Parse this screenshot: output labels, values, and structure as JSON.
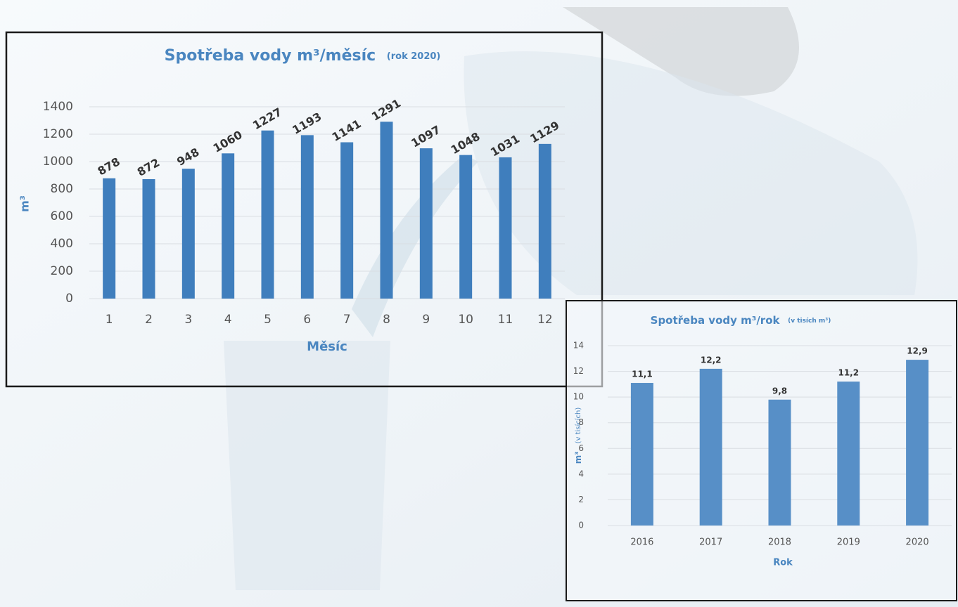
{
  "chart_data": [
    {
      "type": "bar",
      "title": "Spotřeba vody m³/měsíc",
      "subtitle": "(rok 2020)",
      "x_label": "Měsíc",
      "y_label": "m³",
      "categories": [
        "1",
        "2",
        "3",
        "4",
        "5",
        "6",
        "7",
        "8",
        "9",
        "10",
        "11",
        "12"
      ],
      "values": [
        878,
        872,
        948,
        1060,
        1227,
        1193,
        1141,
        1291,
        1097,
        1048,
        1031,
        1129
      ],
      "color": "#3f7ebd",
      "ylim": [
        0,
        1400
      ],
      "yticks": [
        0,
        200,
        400,
        600,
        800,
        1000,
        1200,
        1400
      ],
      "grid": true
    },
    {
      "type": "bar",
      "title": "Spotřeba vody m³/rok",
      "subtitle": "(v tisích m³)",
      "x_label": "Rok",
      "y_label": "m³",
      "y_label_note": "(v tisících)",
      "categories": [
        "2016",
        "2017",
        "2018",
        "2019",
        "2020"
      ],
      "values": [
        11.1,
        12.2,
        9.8,
        11.2,
        12.9
      ],
      "value_labels": [
        "11,1",
        "12,2",
        "9,8",
        "11,2",
        "12,9"
      ],
      "color": "#578fc7",
      "ylim": [
        0,
        14
      ],
      "yticks": [
        0,
        2,
        4,
        6,
        8,
        10,
        12,
        14
      ],
      "grid": true
    }
  ]
}
